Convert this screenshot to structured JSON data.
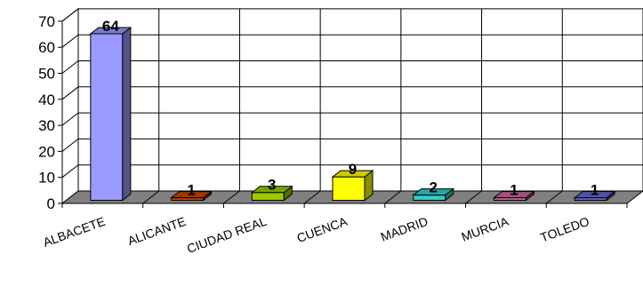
{
  "chart_data": {
    "type": "bar",
    "style": "3d-column",
    "categories": [
      "ALBACETE",
      "ALICANTE",
      "CIUDAD REAL",
      "CUENCA",
      "MADRID",
      "MURCIA",
      "TOLEDO"
    ],
    "values": [
      64,
      1,
      3,
      9,
      2,
      1,
      1
    ],
    "data_labels": [
      "64",
      "1",
      "3",
      "9",
      "2",
      "1",
      "1"
    ],
    "y_ticks": [
      "0",
      "10",
      "20",
      "30",
      "40",
      "50",
      "60",
      "70"
    ],
    "ylim": [
      0,
      70
    ],
    "grid": true,
    "legend": "none",
    "bar_colors": [
      "#9999ff",
      "#cc4400",
      "#99cc00",
      "#ffff00",
      "#33cccc",
      "#cc6699",
      "#6666cc"
    ],
    "floor_color": "#808080"
  }
}
